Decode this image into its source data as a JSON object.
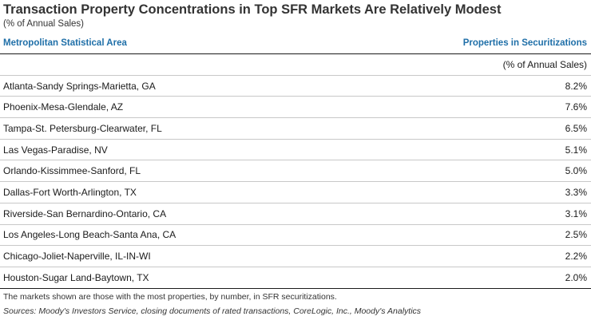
{
  "title": "Transaction Property Concentrations in Top SFR Markets Are Relatively Modest",
  "subtitle": "(% of Annual Sales)",
  "header": {
    "left": "Metropolitan Statistical Area",
    "right": "Properties in Securitizations"
  },
  "unit_row": "(% of Annual Sales)",
  "note": "The markets shown are those with the most properties, by number, in SFR securitizations.",
  "source": "Sources: Moody's Investors Service, closing documents of rated transactions, CoreLogic, Inc., Moody's Analytics",
  "chart_data": {
    "type": "table",
    "title": "Transaction Property Concentrations in Top SFR Markets Are Relatively Modest",
    "subtitle": "(% of Annual Sales)",
    "columns": [
      "Metropolitan Statistical Area",
      "Properties in Securitizations"
    ],
    "rows": [
      {
        "msa": "Atlanta-Sandy Springs-Marietta, GA",
        "value": "8.2%"
      },
      {
        "msa": "Phoenix-Mesa-Glendale, AZ",
        "value": "7.6%"
      },
      {
        "msa": "Tampa-St. Petersburg-Clearwater, FL",
        "value": "6.5%"
      },
      {
        "msa": "Las Vegas-Paradise, NV",
        "value": "5.1%"
      },
      {
        "msa": "Orlando-Kissimmee-Sanford, FL",
        "value": "5.0%"
      },
      {
        "msa": "Dallas-Fort Worth-Arlington, TX",
        "value": "3.3%"
      },
      {
        "msa": "Riverside-San Bernardino-Ontario, CA",
        "value": "3.1%"
      },
      {
        "msa": "Los Angeles-Long Beach-Santa Ana, CA",
        "value": "2.5%"
      },
      {
        "msa": "Chicago-Joliet-Naperville, IL-IN-WI",
        "value": "2.2%"
      },
      {
        "msa": "Houston-Sugar Land-Baytown, TX",
        "value": "2.0%"
      }
    ]
  }
}
